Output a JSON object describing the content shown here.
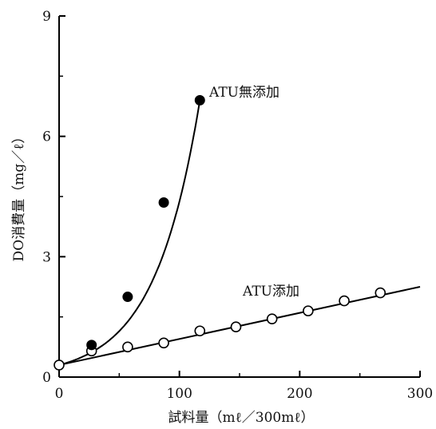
{
  "chart_data": {
    "type": "scatter",
    "xlabel": "試料量（mℓ／300mℓ）",
    "ylabel": "DO消費量（mg／ℓ）",
    "xlim": [
      0,
      300
    ],
    "ylim": [
      0,
      9
    ],
    "xticks": [
      "0",
      "100",
      "200",
      "300"
    ],
    "yticks": [
      "0",
      "3",
      "6",
      "9"
    ],
    "grid": false,
    "series": [
      {
        "name": "ATU無添加",
        "marker": "filled-circle",
        "x": [
          0,
          27,
          57,
          87,
          117
        ],
        "y": [
          0.3,
          0.8,
          2.0,
          4.35,
          6.9
        ],
        "fit": "curve"
      },
      {
        "name": "ATU添加",
        "marker": "open-circle",
        "x": [
          0,
          27,
          57,
          87,
          117,
          147,
          177,
          207,
          237,
          267
        ],
        "y": [
          0.3,
          0.65,
          0.75,
          0.85,
          1.15,
          1.25,
          1.45,
          1.65,
          1.9,
          2.1
        ],
        "fit": "line",
        "fit_end": [
          300,
          2.25
        ]
      }
    ]
  }
}
